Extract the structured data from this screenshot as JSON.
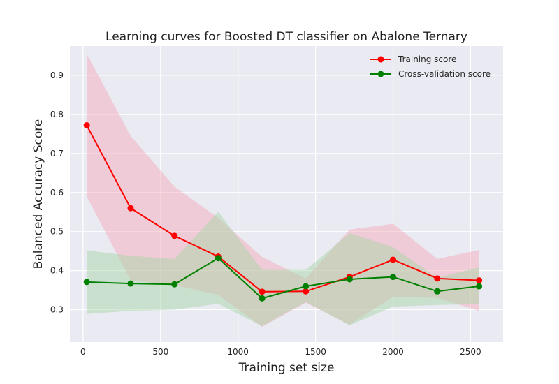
{
  "chart_data": {
    "type": "line",
    "title": "Learning curves for Boosted DT classifier on Abalone Ternary",
    "xlabel": "Training set size",
    "ylabel": "Balanced Accuracy Score",
    "xlim": [
      -85,
      2710
    ],
    "ylim": [
      0.217,
      0.975
    ],
    "xticks": [
      0,
      500,
      1000,
      1500,
      2000,
      2500
    ],
    "yticks": [
      0.3,
      0.4,
      0.5,
      0.6,
      0.7,
      0.8,
      0.9
    ],
    "grid": true,
    "legend_position": "top-right",
    "x": [
      24,
      307,
      590,
      872,
      1155,
      1437,
      1720,
      2000,
      2285,
      2555
    ],
    "series": [
      {
        "name": "Training score",
        "color": "#ff0000",
        "fill_color": "#f4a6b4",
        "values": [
          0.772,
          0.56,
          0.489,
          0.436,
          0.346,
          0.347,
          0.384,
          0.428,
          0.38,
          0.375
        ],
        "band_upper": [
          0.955,
          0.745,
          0.615,
          0.535,
          0.435,
          0.38,
          0.505,
          0.52,
          0.43,
          0.453
        ],
        "band_lower": [
          0.59,
          0.375,
          0.363,
          0.338,
          0.256,
          0.318,
          0.262,
          0.333,
          0.33,
          0.297
        ]
      },
      {
        "name": "Cross-validation score",
        "color": "#008000",
        "fill_color": "#a3d4a3",
        "values": [
          0.371,
          0.367,
          0.365,
          0.432,
          0.329,
          0.36,
          0.378,
          0.384,
          0.347,
          0.36
        ],
        "band_upper": [
          0.452,
          0.438,
          0.43,
          0.551,
          0.402,
          0.402,
          0.496,
          0.46,
          0.382,
          0.408
        ],
        "band_lower": [
          0.289,
          0.297,
          0.3,
          0.315,
          0.258,
          0.32,
          0.26,
          0.308,
          0.312,
          0.314
        ]
      }
    ]
  }
}
